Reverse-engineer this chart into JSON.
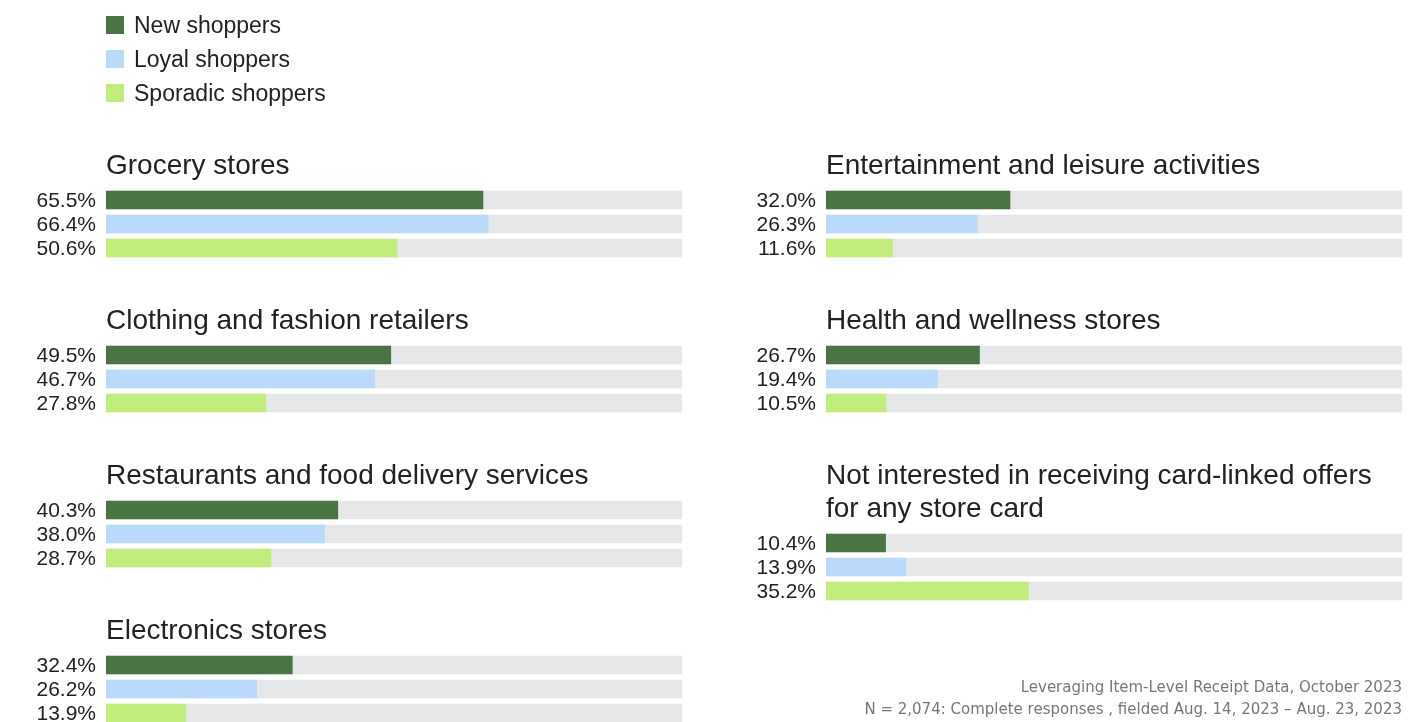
{
  "chart_data": [
    {
      "type": "bar",
      "orientation": "horizontal",
      "title": "Grocery stores",
      "categories": [
        null
      ],
      "xlim": [
        0,
        100
      ],
      "legend": "top left",
      "series": [
        {
          "name": "New shoppers",
          "color": "#4a7443",
          "values": [
            65.5
          ],
          "value_labels": [
            "65.5%"
          ]
        },
        {
          "name": "Loyal shoppers",
          "color": "#bad9fb",
          "values": [
            66.4
          ],
          "value_labels": [
            "66.4%"
          ]
        },
        {
          "name": "Sporadic shoppers",
          "color": "#c2ed7d",
          "values": [
            50.6
          ],
          "value_labels": [
            "50.6%"
          ]
        }
      ]
    },
    {
      "type": "bar",
      "orientation": "horizontal",
      "title": "Clothing and fashion retailers",
      "categories": [
        null
      ],
      "xlim": [
        0,
        100
      ],
      "series": [
        {
          "color": "#4a7443",
          "values": [
            49.5
          ],
          "value_labels": [
            "49.5%"
          ]
        },
        {
          "color": "#bad9fb",
          "values": [
            46.7
          ],
          "value_labels": [
            "46.7%"
          ]
        },
        {
          "color": "#c2ed7d",
          "values": [
            27.8
          ],
          "value_labels": [
            "27.8%"
          ]
        }
      ]
    },
    {
      "type": "bar",
      "orientation": "horizontal",
      "title": "Restaurants and food delivery services",
      "categories": [
        null
      ],
      "xlim": [
        0,
        100
      ],
      "series": [
        {
          "color": "#4a7443",
          "values": [
            40.3
          ],
          "value_labels": [
            "40.3%"
          ]
        },
        {
          "color": "#bad9fb",
          "values": [
            38.0
          ],
          "value_labels": [
            "38.0%"
          ]
        },
        {
          "color": "#c2ed7d",
          "values": [
            28.7
          ],
          "value_labels": [
            "28.7%"
          ]
        }
      ]
    },
    {
      "type": "bar",
      "orientation": "horizontal",
      "title": "Electronics stores",
      "categories": [
        null
      ],
      "xlim": [
        0,
        100
      ],
      "series": [
        {
          "color": "#4a7443",
          "values": [
            32.4
          ],
          "value_labels": [
            "32.4%"
          ]
        },
        {
          "color": "#bad9fb",
          "values": [
            26.2
          ],
          "value_labels": [
            "26.2%"
          ]
        },
        {
          "color": "#c2ed7d",
          "values": [
            13.9
          ],
          "value_labels": [
            "13.9%"
          ]
        }
      ]
    },
    {
      "type": "bar",
      "orientation": "horizontal",
      "title": "Entertainment and leisure activities",
      "categories": [
        null
      ],
      "xlim": [
        0,
        100
      ],
      "series": [
        {
          "color": "#4a7443",
          "values": [
            32.0
          ],
          "value_labels": [
            "32.0%"
          ]
        },
        {
          "color": "#bad9fb",
          "values": [
            26.3
          ],
          "value_labels": [
            "26.3%"
          ]
        },
        {
          "color": "#c2ed7d",
          "values": [
            11.6
          ],
          "value_labels": [
            "11.6%"
          ]
        }
      ]
    },
    {
      "type": "bar",
      "orientation": "horizontal",
      "title": "Health and wellness stores",
      "categories": [
        null
      ],
      "xlim": [
        0,
        100
      ],
      "series": [
        {
          "color": "#4a7443",
          "values": [
            26.7
          ],
          "value_labels": [
            "26.7%"
          ]
        },
        {
          "color": "#bad9fb",
          "values": [
            19.4
          ],
          "value_labels": [
            "19.4%"
          ]
        },
        {
          "color": "#c2ed7d",
          "values": [
            10.5
          ],
          "value_labels": [
            "10.5%"
          ]
        }
      ]
    },
    {
      "type": "bar",
      "orientation": "horizontal",
      "title": "Not interested in receiving card-linked offers for any store card",
      "categories": [
        null
      ],
      "xlim": [
        0,
        100
      ],
      "annotations": [
        "Leveraging Item-Level Receipt Data, October 2023",
        "N = 2,074: Complete responses , fielded Aug. 14, 2023 – Aug. 23, 2023"
      ],
      "series": [
        {
          "color": "#4a7443",
          "values": [
            10.4
          ],
          "value_labels": [
            "10.4%"
          ]
        },
        {
          "color": "#bad9fb",
          "values": [
            13.9
          ],
          "value_labels": [
            "13.9%"
          ]
        },
        {
          "color": "#c2ed7d",
          "values": [
            35.2
          ],
          "value_labels": [
            "35.2%"
          ]
        }
      ]
    }
  ]
}
